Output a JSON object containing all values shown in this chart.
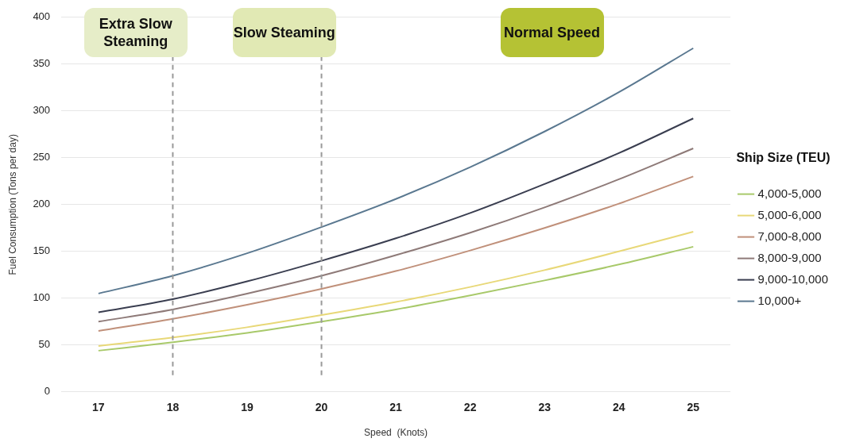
{
  "chart_data": {
    "type": "line",
    "xlabel": "Speed  (Knots)",
    "ylabel": "Fuel Consumption (Tons per day)",
    "legend_title": "Ship Size (TEU)",
    "categories": [
      "17",
      "18",
      "19",
      "20",
      "21",
      "22",
      "23",
      "24",
      "25"
    ],
    "series": [
      {
        "name": "4,000-5,000",
        "color": "#a8c96a",
        "values": [
          44,
          53,
          63,
          75,
          88,
          103,
          119,
          136,
          155
        ]
      },
      {
        "name": "5,000-6,000",
        "color": "#e8d878",
        "values": [
          49,
          58,
          69,
          82,
          96,
          112,
          130,
          150,
          171
        ]
      },
      {
        "name": "7,000-8,000",
        "color": "#c0907a",
        "values": [
          65,
          78,
          93,
          110,
          129,
          151,
          175,
          201,
          230
        ]
      },
      {
        "name": "8,000-9,000",
        "color": "#8e7a78",
        "values": [
          75,
          88,
          105,
          124,
          146,
          170,
          197,
          227,
          260
        ]
      },
      {
        "name": "9,000-10,000",
        "color": "#3a3e50",
        "values": [
          85,
          99,
          118,
          140,
          164,
          191,
          222,
          255,
          292
        ]
      },
      {
        "name": "10,000+",
        "color": "#5a7890",
        "values": [
          105,
          124,
          148,
          176,
          206,
          240,
          278,
          320,
          367
        ]
      }
    ],
    "ylim": [
      0,
      400
    ],
    "yticks": [
      0,
      50,
      100,
      150,
      200,
      250,
      300,
      350,
      400
    ],
    "ref_lines": [
      {
        "axis": "x",
        "value": "18",
        "color": "#999999",
        "line_style": "dashed"
      },
      {
        "axis": "x",
        "value": "20",
        "color": "#999999",
        "line_style": "dashed"
      }
    ],
    "annotations": [
      "Extra Slow Steaming",
      "Slow Steaming",
      "Normal Speed"
    ],
    "grid": "y",
    "legend": "right",
    "marker": "none",
    "line_style": "solid"
  }
}
